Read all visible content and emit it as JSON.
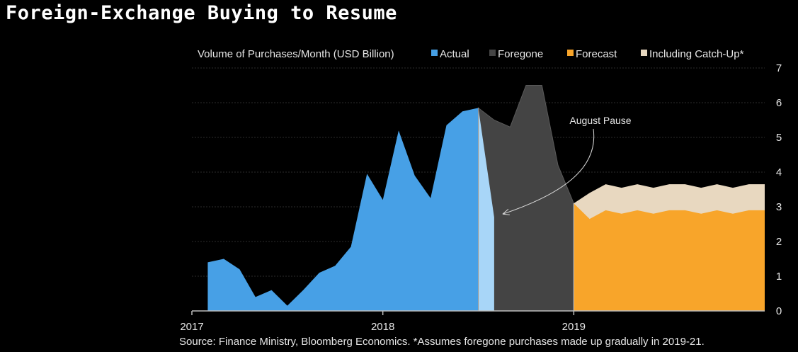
{
  "title": "Foreign-Exchange Buying to Resume",
  "source": "Source: Finance Ministry, Bloomberg Economics. *Assumes foregone purchases made up gradually in 2019-21.",
  "chart_data": {
    "type": "area",
    "title": "Foreign-Exchange Buying to Resume",
    "ylabel": "Volume of Purchases/Month (USD Billion)",
    "ylim": [
      0,
      7
    ],
    "yticks": [
      "0",
      "1",
      "2",
      "3",
      "4",
      "5",
      "6",
      "7"
    ],
    "xlim": [
      2017,
      2020
    ],
    "xticks": [
      {
        "value": 2017,
        "label": "2017"
      },
      {
        "value": 2018,
        "label": "2018"
      },
      {
        "value": 2019,
        "label": "2019"
      }
    ],
    "grid": true,
    "legend_position": "top",
    "series": [
      {
        "name": "Actual",
        "color": "#47a0e6",
        "x": [
          2017.083,
          2017.167,
          2017.25,
          2017.333,
          2017.417,
          2017.5,
          2017.583,
          2017.667,
          2017.75,
          2017.833,
          2017.917,
          2018.0,
          2018.083,
          2018.167,
          2018.25,
          2018.333,
          2018.417,
          2018.5,
          2018.583
        ],
        "values": [
          1.4,
          1.5,
          1.2,
          0.4,
          0.6,
          0.15,
          0.6,
          1.1,
          1.3,
          1.85,
          3.95,
          3.2,
          5.2,
          3.9,
          3.25,
          5.35,
          5.75,
          5.85,
          2.7
        ]
      },
      {
        "name": "Foregone",
        "color": "#444444",
        "x": [
          2018.5,
          2018.583,
          2018.667,
          2018.75,
          2018.833,
          2018.917,
          2019.0
        ],
        "values": [
          5.85,
          5.5,
          5.3,
          6.5,
          6.5,
          4.2,
          3.1
        ]
      },
      {
        "name": "Forecast",
        "color": "#f8a52a",
        "x": [
          2019.0,
          2019.083,
          2019.167,
          2019.25,
          2019.333,
          2019.417,
          2019.5,
          2019.583,
          2019.667,
          2019.75,
          2019.833,
          2019.917,
          2020.0
        ],
        "values": [
          3.1,
          2.65,
          2.9,
          2.8,
          2.9,
          2.8,
          2.9,
          2.9,
          2.8,
          2.9,
          2.8,
          2.9,
          2.9
        ]
      },
      {
        "name": "Including Catch-Up*",
        "color": "#e8d8c0",
        "x": [
          2019.0,
          2019.083,
          2019.167,
          2019.25,
          2019.333,
          2019.417,
          2019.5,
          2019.583,
          2019.667,
          2019.75,
          2019.833,
          2019.917,
          2020.0
        ],
        "values": [
          3.1,
          3.4,
          3.65,
          3.55,
          3.65,
          3.55,
          3.65,
          3.65,
          3.55,
          3.65,
          3.55,
          3.65,
          3.65
        ]
      }
    ],
    "annotations": [
      {
        "text": "August Pause",
        "x": 2018.583,
        "y": 2.75
      }
    ]
  }
}
